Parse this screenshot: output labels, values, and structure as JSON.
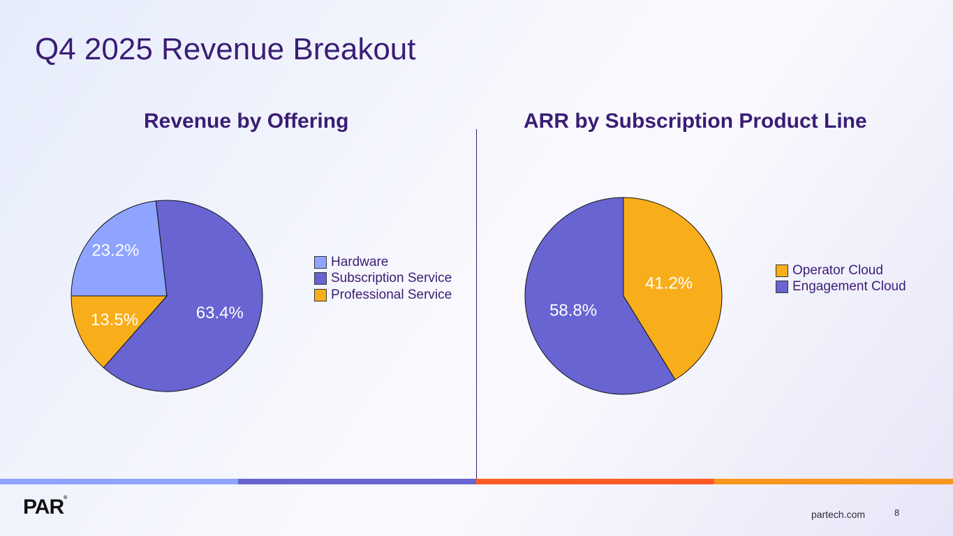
{
  "slide": {
    "title": "Q4 2025 Revenue Breakout",
    "logo": "PAR",
    "logo_mark": "®",
    "url": "partech.com",
    "page_number": "8"
  },
  "colors": {
    "title": "#3a1d74",
    "hardware": "#8fa4ff",
    "subscription": "#6864d1",
    "professional": "#f8ae1b",
    "operator_cloud": "#f8ae1b",
    "engagement_cloud": "#6864d1",
    "stripes": [
      "#8fa4ff",
      "#6864d1",
      "#ff5a24",
      "#f8961e"
    ]
  },
  "chart_data": [
    {
      "type": "pie",
      "title": "Revenue by Offering",
      "legend_position": "right",
      "slices": [
        {
          "label": "Hardware",
          "value": 23.2,
          "value_label": "23.2%",
          "color": "#8fa4ff"
        },
        {
          "label": "Subscription Service",
          "value": 63.4,
          "value_label": "63.4%",
          "color": "#6864d1"
        },
        {
          "label": "Professional Service",
          "value": 13.5,
          "value_label": "13.5%",
          "color": "#f8ae1b"
        }
      ]
    },
    {
      "type": "pie",
      "title": "ARR by Subscription Product Line",
      "legend_position": "right",
      "slices": [
        {
          "label": "Operator Cloud",
          "value": 41.2,
          "value_label": "41.2%",
          "color": "#f8ae1b"
        },
        {
          "label": "Engagement Cloud",
          "value": 58.8,
          "value_label": "58.8%",
          "color": "#6864d1"
        }
      ]
    }
  ]
}
